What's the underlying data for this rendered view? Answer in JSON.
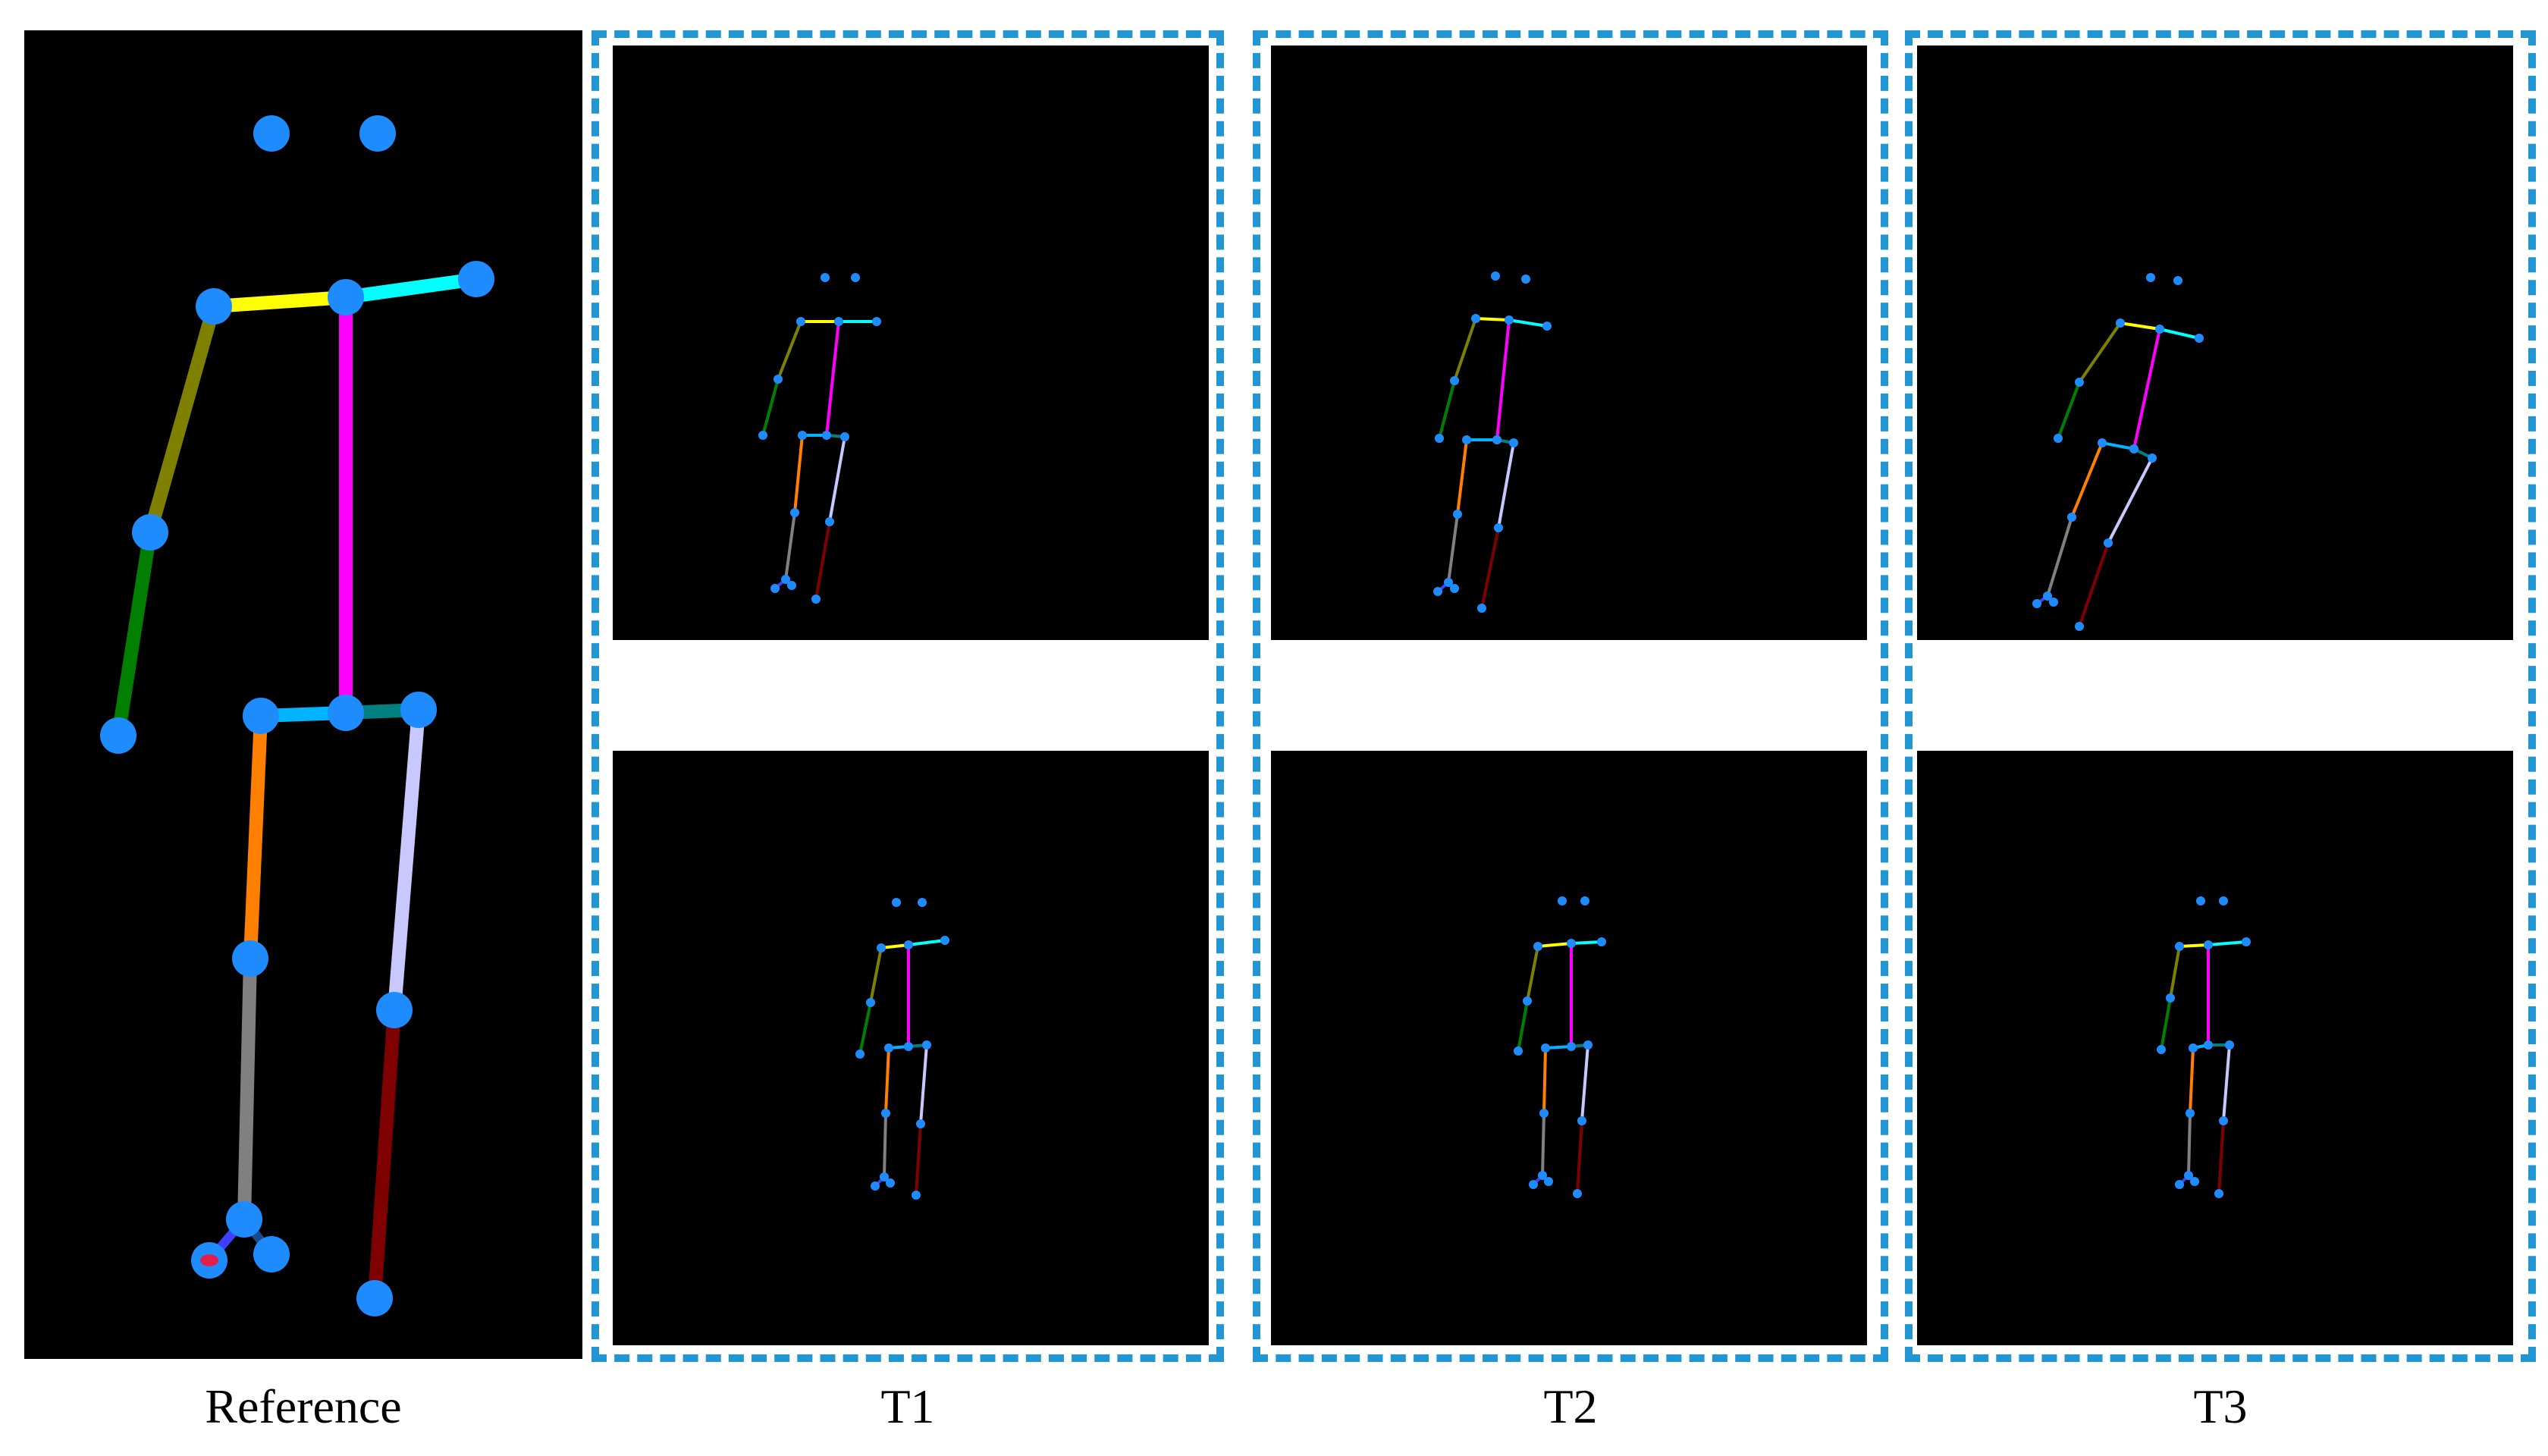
{
  "captions": {
    "reference": "Reference",
    "t1": "T1",
    "t2": "T2",
    "t3": "T3"
  },
  "colors": {
    "background": "#000000",
    "joint": "#1e8cff",
    "group_border": "#2196d3",
    "bones": {
      "shoulder_left": "#ffff00",
      "shoulder_right": "#00ffff",
      "upper_arm": "#7f7f00",
      "forearm": "#007f00",
      "torso": "#ff00ff",
      "hip_left": "#00b4ff",
      "hip_right": "#008080",
      "thigh_left": "#ff7f00",
      "shin_left": "#808080",
      "thigh_right": "#c8c8ff",
      "shin_right": "#7f0000",
      "foot": "#3f3fff"
    }
  }
}
